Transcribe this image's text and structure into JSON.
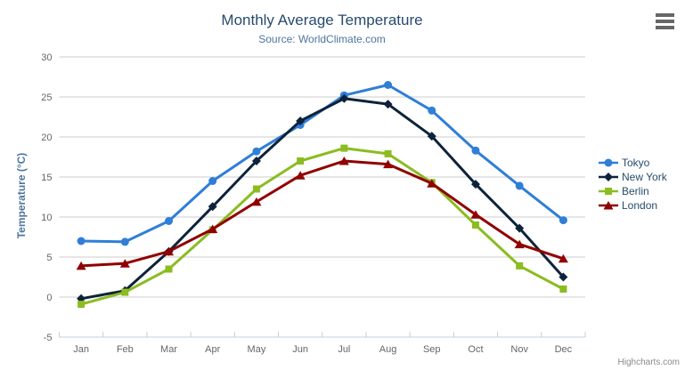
{
  "chart": {
    "credits": "Highcharts.com",
    "menu_icon": "hamburger-menu-icon"
  },
  "colors": {
    "title": "#274b6d",
    "subtitle": "#4d759e",
    "axis_label": "#666666",
    "axis_title": "#4d759e",
    "grid": "#cccccc",
    "axis_line": "#c0d0e0",
    "credits": "#8a8a8a"
  },
  "chart_data": {
    "type": "line",
    "title": "Monthly Average Temperature",
    "subtitle": "Source: WorldClimate.com",
    "categories": [
      "Jan",
      "Feb",
      "Mar",
      "Apr",
      "May",
      "Jun",
      "Jul",
      "Aug",
      "Sep",
      "Oct",
      "Nov",
      "Dec"
    ],
    "xlabel": "",
    "ylabel": "Temperature (°C)",
    "ylim": [
      -5,
      30
    ],
    "ytick_interval": 5,
    "y_ticks": [
      -5,
      0,
      5,
      10,
      15,
      20,
      25,
      30
    ],
    "grid": true,
    "legend_position": "right",
    "series": [
      {
        "name": "Tokyo",
        "color": "#2f7ed8",
        "marker": "circle",
        "values": [
          7.0,
          6.9,
          9.5,
          14.5,
          18.2,
          21.5,
          25.2,
          26.5,
          23.3,
          18.3,
          13.9,
          9.6
        ]
      },
      {
        "name": "New York",
        "color": "#0d233a",
        "marker": "diamond",
        "values": [
          -0.2,
          0.8,
          5.7,
          11.3,
          17.0,
          22.0,
          24.8,
          24.1,
          20.1,
          14.1,
          8.6,
          2.5
        ]
      },
      {
        "name": "Berlin",
        "color": "#8bbc21",
        "marker": "square",
        "values": [
          -0.9,
          0.6,
          3.5,
          8.4,
          13.5,
          17.0,
          18.6,
          17.9,
          14.3,
          9.0,
          3.9,
          1.0
        ]
      },
      {
        "name": "London",
        "color": "#910000",
        "marker": "triangle",
        "values": [
          3.9,
          4.2,
          5.7,
          8.5,
          11.9,
          15.2,
          17.0,
          16.6,
          14.2,
          10.3,
          6.6,
          4.8
        ]
      }
    ]
  }
}
